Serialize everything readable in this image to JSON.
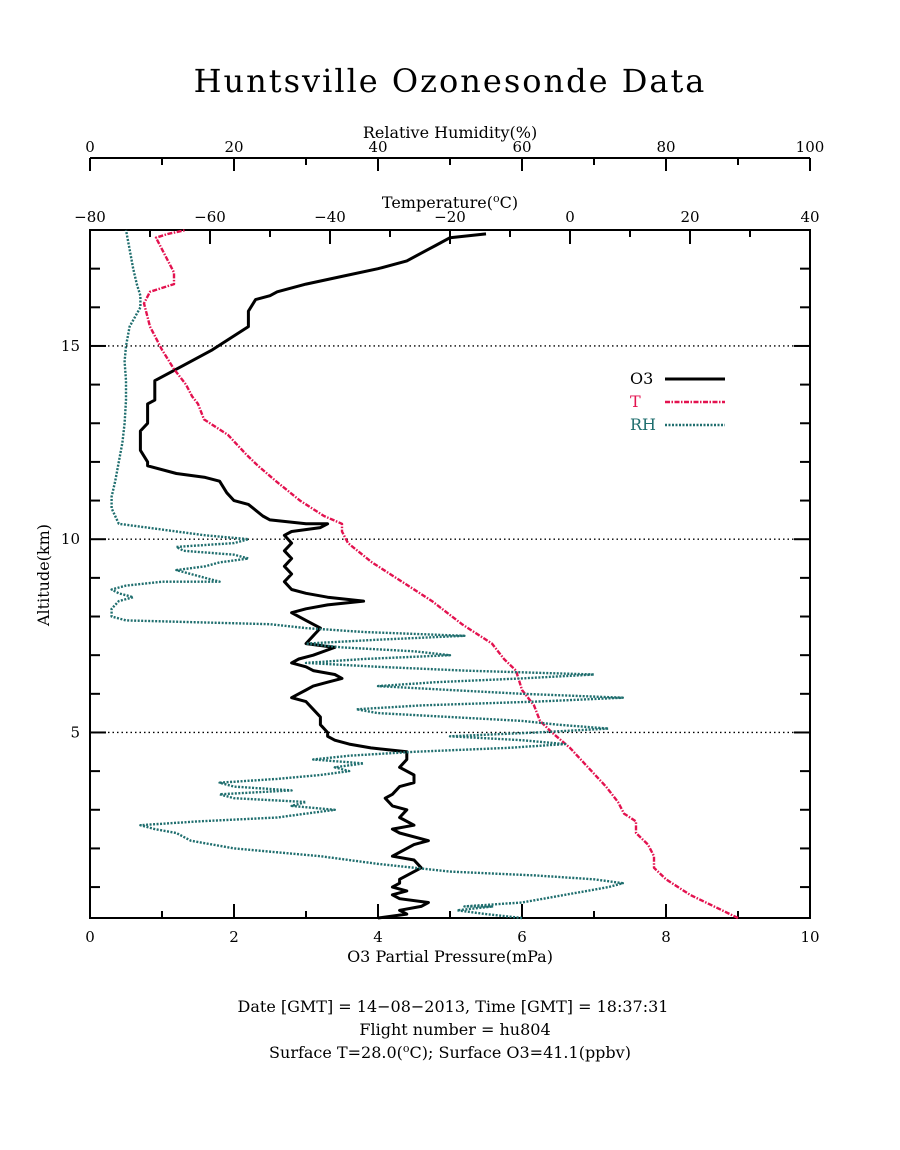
{
  "chart_data": {
    "type": "line",
    "title": "Huntsville Ozonesonde Data",
    "ylabel": "Altitude(km)",
    "ylim": [
      0.2,
      18.0
    ],
    "yticks": [
      5,
      10,
      15
    ],
    "axes": {
      "ozone": {
        "label": "O3 Partial Pressure(mPa)",
        "lim": [
          0,
          10
        ],
        "ticks": [
          "0",
          "2",
          "4",
          "6",
          "8",
          "10"
        ],
        "values": [
          0,
          2,
          4,
          6,
          8,
          10
        ]
      },
      "temperature": {
        "label_prefix": "Temperature(",
        "label_sup": "o",
        "label_suffix": "C)",
        "lim": [
          -80,
          40
        ],
        "ticks": [
          "−80",
          "−60",
          "−40",
          "−20",
          "0",
          "20",
          "40"
        ],
        "values": [
          -80,
          -60,
          -40,
          -20,
          0,
          20,
          40
        ]
      },
      "humidity": {
        "label": "Relative Humidity(%)",
        "lim": [
          0,
          100
        ],
        "ticks": [
          "0",
          "20",
          "40",
          "60",
          "80",
          "100"
        ],
        "values": [
          0,
          20,
          40,
          60,
          80,
          100
        ]
      }
    },
    "gridlines_y": [
      5,
      10,
      15
    ],
    "legend_position": "right",
    "series": [
      {
        "name": "O3",
        "axis": "ozone",
        "color": "#000000",
        "style": "solid",
        "points": [
          [
            4.0,
            0.2
          ],
          [
            4.4,
            0.3
          ],
          [
            4.3,
            0.4
          ],
          [
            4.6,
            0.5
          ],
          [
            4.7,
            0.6
          ],
          [
            4.3,
            0.7
          ],
          [
            4.2,
            0.8
          ],
          [
            4.4,
            0.9
          ],
          [
            4.2,
            1.0
          ],
          [
            4.3,
            1.1
          ],
          [
            4.3,
            1.2
          ],
          [
            4.6,
            1.5
          ],
          [
            4.5,
            1.7
          ],
          [
            4.2,
            1.8
          ],
          [
            4.3,
            1.9
          ],
          [
            4.4,
            2.0
          ],
          [
            4.5,
            2.1
          ],
          [
            4.7,
            2.2
          ],
          [
            4.3,
            2.4
          ],
          [
            4.2,
            2.5
          ],
          [
            4.5,
            2.6
          ],
          [
            4.3,
            2.8
          ],
          [
            4.4,
            3.0
          ],
          [
            4.2,
            3.1
          ],
          [
            4.1,
            3.3
          ],
          [
            4.2,
            3.4
          ],
          [
            4.3,
            3.6
          ],
          [
            4.5,
            3.7
          ],
          [
            4.5,
            3.9
          ],
          [
            4.3,
            4.1
          ],
          [
            4.4,
            4.3
          ],
          [
            4.4,
            4.5
          ],
          [
            3.9,
            4.6
          ],
          [
            3.6,
            4.7
          ],
          [
            3.4,
            4.8
          ],
          [
            3.3,
            4.9
          ],
          [
            3.3,
            5.0
          ],
          [
            3.2,
            5.2
          ],
          [
            3.2,
            5.4
          ],
          [
            3.1,
            5.6
          ],
          [
            3.0,
            5.8
          ],
          [
            2.8,
            5.9
          ],
          [
            2.9,
            6.0
          ],
          [
            3.0,
            6.1
          ],
          [
            3.1,
            6.2
          ],
          [
            3.3,
            6.3
          ],
          [
            3.5,
            6.4
          ],
          [
            3.4,
            6.5
          ],
          [
            3.1,
            6.6
          ],
          [
            3.0,
            6.7
          ],
          [
            2.8,
            6.8
          ],
          [
            2.9,
            6.9
          ],
          [
            3.1,
            7.0
          ],
          [
            3.4,
            7.2
          ],
          [
            3.0,
            7.3
          ],
          [
            3.1,
            7.5
          ],
          [
            3.2,
            7.7
          ],
          [
            3.0,
            7.9
          ],
          [
            2.8,
            8.1
          ],
          [
            3.0,
            8.2
          ],
          [
            3.3,
            8.3
          ],
          [
            3.8,
            8.4
          ],
          [
            3.3,
            8.5
          ],
          [
            3.0,
            8.6
          ],
          [
            2.8,
            8.7
          ],
          [
            2.7,
            8.9
          ],
          [
            2.8,
            9.1
          ],
          [
            2.7,
            9.3
          ],
          [
            2.8,
            9.5
          ],
          [
            2.7,
            9.7
          ],
          [
            2.8,
            9.9
          ],
          [
            2.7,
            10.1
          ],
          [
            2.8,
            10.2
          ],
          [
            3.2,
            10.3
          ],
          [
            3.3,
            10.4
          ],
          [
            3.0,
            10.4
          ],
          [
            2.5,
            10.5
          ],
          [
            2.4,
            10.6
          ],
          [
            2.2,
            10.9
          ],
          [
            2.0,
            11.0
          ],
          [
            1.9,
            11.2
          ],
          [
            1.8,
            11.5
          ],
          [
            1.6,
            11.6
          ],
          [
            1.2,
            11.7
          ],
          [
            0.8,
            11.9
          ],
          [
            0.8,
            12.0
          ],
          [
            0.7,
            12.3
          ],
          [
            0.7,
            12.8
          ],
          [
            0.8,
            13.0
          ],
          [
            0.8,
            13.5
          ],
          [
            0.9,
            13.6
          ],
          [
            0.9,
            14.1
          ],
          [
            1.3,
            14.5
          ],
          [
            1.7,
            14.9
          ],
          [
            2.2,
            15.5
          ],
          [
            2.2,
            15.9
          ],
          [
            2.3,
            16.2
          ],
          [
            2.5,
            16.3
          ],
          [
            2.6,
            16.4
          ],
          [
            3.0,
            16.6
          ],
          [
            3.5,
            16.8
          ],
          [
            4.0,
            17.0
          ],
          [
            4.4,
            17.2
          ],
          [
            4.7,
            17.5
          ],
          [
            4.8,
            17.6
          ],
          [
            5.0,
            17.8
          ],
          [
            5.5,
            17.9
          ]
        ]
      },
      {
        "name": "T",
        "axis": "temperature",
        "color": "#e3124f",
        "style": "dashdot",
        "points": [
          [
            28.0,
            0.2
          ],
          [
            24.0,
            0.5
          ],
          [
            20.0,
            0.8
          ],
          [
            16.0,
            1.2
          ],
          [
            14.0,
            1.5
          ],
          [
            14.0,
            1.8
          ],
          [
            13.0,
            2.1
          ],
          [
            11.0,
            2.4
          ],
          [
            11.0,
            2.7
          ],
          [
            9.0,
            2.9
          ],
          [
            8.0,
            3.2
          ],
          [
            6.0,
            3.6
          ],
          [
            3.0,
            4.1
          ],
          [
            0.0,
            4.6
          ],
          [
            -3.0,
            5.0
          ],
          [
            -5.0,
            5.3
          ],
          [
            -6.0,
            5.7
          ],
          [
            -8.0,
            6.1
          ],
          [
            -9.0,
            6.6
          ],
          [
            -11.0,
            6.9
          ],
          [
            -13.0,
            7.3
          ],
          [
            -16.0,
            7.6
          ],
          [
            -18.0,
            7.8
          ],
          [
            -23.0,
            8.4
          ],
          [
            -28.0,
            8.9
          ],
          [
            -33.0,
            9.4
          ],
          [
            -37.0,
            9.9
          ],
          [
            -38.0,
            10.2
          ],
          [
            -38.0,
            10.4
          ],
          [
            -41.0,
            10.6
          ],
          [
            -45.0,
            11.0
          ],
          [
            -49.0,
            11.5
          ],
          [
            -52.0,
            11.9
          ],
          [
            -54.0,
            12.2
          ],
          [
            -57.0,
            12.7
          ],
          [
            -61.0,
            13.1
          ],
          [
            -62.0,
            13.5
          ],
          [
            -63.0,
            13.7
          ],
          [
            -64.0,
            14.0
          ],
          [
            -66.0,
            14.4
          ],
          [
            -68.0,
            14.9
          ],
          [
            -70.0,
            15.5
          ],
          [
            -71.0,
            16.1
          ],
          [
            -70.0,
            16.4
          ],
          [
            -66.0,
            16.6
          ],
          [
            -66.0,
            16.9
          ],
          [
            -67.0,
            17.2
          ],
          [
            -68.0,
            17.5
          ],
          [
            -69.0,
            17.8
          ],
          [
            -67.0,
            17.9
          ],
          [
            -64.0,
            18.0
          ]
        ]
      },
      {
        "name": "RH",
        "axis": "humidity",
        "color": "#1f6e6e",
        "style": "dotted",
        "points": [
          [
            60.0,
            0.2
          ],
          [
            55.0,
            0.3
          ],
          [
            51.0,
            0.4
          ],
          [
            56.0,
            0.5
          ],
          [
            52.0,
            0.5
          ],
          [
            60.0,
            0.6
          ],
          [
            66.0,
            0.8
          ],
          [
            72.0,
            1.0
          ],
          [
            74.0,
            1.1
          ],
          [
            70.0,
            1.2
          ],
          [
            62.0,
            1.3
          ],
          [
            50.0,
            1.4
          ],
          [
            40.0,
            1.6
          ],
          [
            32.0,
            1.8
          ],
          [
            20.0,
            2.0
          ],
          [
            14.0,
            2.2
          ],
          [
            12.0,
            2.4
          ],
          [
            9.0,
            2.5
          ],
          [
            7.0,
            2.6
          ],
          [
            15.0,
            2.7
          ],
          [
            26.0,
            2.8
          ],
          [
            30.0,
            2.9
          ],
          [
            34.0,
            3.0
          ],
          [
            28.0,
            3.1
          ],
          [
            30.0,
            3.2
          ],
          [
            20.0,
            3.3
          ],
          [
            18.0,
            3.4
          ],
          [
            28.0,
            3.5
          ],
          [
            20.0,
            3.6
          ],
          [
            18.0,
            3.7
          ],
          [
            26.0,
            3.8
          ],
          [
            32.0,
            3.9
          ],
          [
            36.0,
            4.0
          ],
          [
            34.0,
            4.1
          ],
          [
            38.0,
            4.2
          ],
          [
            31.0,
            4.3
          ],
          [
            36.0,
            4.4
          ],
          [
            45.0,
            4.5
          ],
          [
            58.0,
            4.6
          ],
          [
            66.0,
            4.7
          ],
          [
            60.0,
            4.8
          ],
          [
            50.0,
            4.9
          ],
          [
            62.0,
            5.0
          ],
          [
            72.0,
            5.1
          ],
          [
            65.0,
            5.2
          ],
          [
            60.0,
            5.3
          ],
          [
            50.0,
            5.4
          ],
          [
            40.0,
            5.5
          ],
          [
            37.0,
            5.6
          ],
          [
            46.0,
            5.7
          ],
          [
            62.0,
            5.8
          ],
          [
            74.0,
            5.9
          ],
          [
            60.0,
            6.0
          ],
          [
            50.0,
            6.1
          ],
          [
            40.0,
            6.2
          ],
          [
            48.0,
            6.3
          ],
          [
            60.0,
            6.4
          ],
          [
            70.0,
            6.5
          ],
          [
            52.0,
            6.6
          ],
          [
            40.0,
            6.7
          ],
          [
            30.0,
            6.8
          ],
          [
            38.0,
            6.9
          ],
          [
            50.0,
            7.0
          ],
          [
            45.0,
            7.1
          ],
          [
            35.0,
            7.2
          ],
          [
            30.0,
            7.3
          ],
          [
            40.0,
            7.4
          ],
          [
            52.0,
            7.5
          ],
          [
            38.0,
            7.6
          ],
          [
            30.0,
            7.7
          ],
          [
            25.0,
            7.8
          ],
          [
            5.0,
            7.9
          ],
          [
            3.0,
            8.0
          ],
          [
            3.0,
            8.2
          ],
          [
            4.0,
            8.4
          ],
          [
            6.0,
            8.5
          ],
          [
            4.0,
            8.6
          ],
          [
            3.0,
            8.7
          ],
          [
            5.0,
            8.8
          ],
          [
            10.0,
            8.9
          ],
          [
            18.0,
            8.9
          ],
          [
            16.0,
            9.0
          ],
          [
            14.0,
            9.1
          ],
          [
            12.0,
            9.2
          ],
          [
            16.0,
            9.3
          ],
          [
            18.0,
            9.4
          ],
          [
            22.0,
            9.5
          ],
          [
            20.0,
            9.6
          ],
          [
            13.0,
            9.7
          ],
          [
            12.0,
            9.8
          ],
          [
            20.0,
            9.9
          ],
          [
            22.0,
            10.0
          ],
          [
            16.0,
            10.1
          ],
          [
            12.0,
            10.2
          ],
          [
            8.0,
            10.3
          ],
          [
            4.0,
            10.4
          ],
          [
            3.0,
            10.8
          ],
          [
            3.0,
            11.1
          ],
          [
            3.5,
            11.5
          ],
          [
            4.0,
            12.0
          ],
          [
            4.5,
            12.5
          ],
          [
            4.8,
            13.0
          ],
          [
            5.0,
            13.6
          ],
          [
            5.0,
            14.1
          ],
          [
            4.8,
            14.6
          ],
          [
            5.0,
            15.0
          ],
          [
            5.5,
            15.5
          ],
          [
            7.0,
            16.0
          ],
          [
            7.0,
            16.3
          ],
          [
            6.5,
            16.6
          ],
          [
            6.0,
            17.0
          ],
          [
            5.5,
            17.5
          ],
          [
            5.0,
            18.0
          ]
        ]
      }
    ]
  },
  "footer": {
    "line1": "Date [GMT] = 14−08−2013,  Time [GMT] = 18:37:31",
    "line2": "Flight number = hu804",
    "line3_prefix": "Surface T=28.0(",
    "line3_sup": "o",
    "line3_suffix": "C); Surface O3=41.1(ppbv)"
  }
}
